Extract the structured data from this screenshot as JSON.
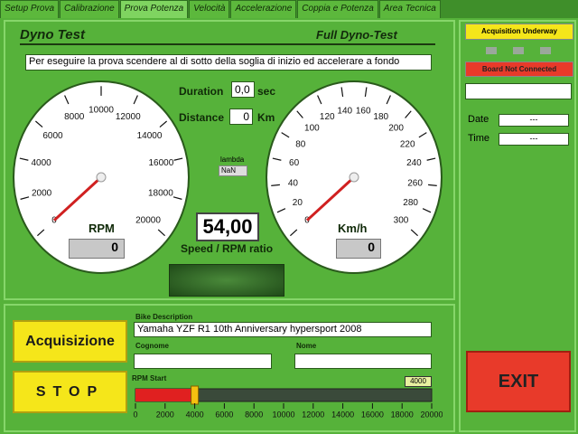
{
  "tabs": [
    "Setup Prova",
    "Calibrazione",
    "Prova Potenza",
    "Velocità",
    "Accelerazione",
    "Coppia e Potenza",
    "Area Tecnica"
  ],
  "header": {
    "title": "Dyno Test",
    "mode": "Full Dyno-Test"
  },
  "message": "Per eseguire la prova scendere al di sotto della soglia di inizio ed accelerare a fondo",
  "rpm_gauge": {
    "label": "RPM",
    "ticks": [
      0,
      2000,
      4000,
      6000,
      8000,
      10000,
      12000,
      14000,
      16000,
      18000,
      20000
    ],
    "value": 0
  },
  "speed_gauge": {
    "label": "Km/h",
    "ticks": [
      0,
      20,
      40,
      60,
      80,
      100,
      120,
      140,
      160,
      180,
      200,
      220,
      240,
      260,
      280,
      300
    ],
    "value": 0
  },
  "duration": {
    "label": "Duration",
    "value": "0,0",
    "unit": "sec"
  },
  "distance": {
    "label": "Distance",
    "value": "0",
    "unit": "Km"
  },
  "lambda": {
    "label": "lambda",
    "value": "NaN"
  },
  "ratio": {
    "value": "54,00",
    "label": "Speed / RPM ratio"
  },
  "bike": {
    "label": "Bike Description",
    "value": "Yamaha YZF R1 10th Anniversary hypersport 2008"
  },
  "cognome": {
    "label": "Cognome"
  },
  "nome": {
    "label": "Nome"
  },
  "buttons": {
    "acquire": "Acquisizione",
    "stop": "STOP",
    "exit": "EXIT"
  },
  "rpm_start": {
    "label": "RPM Start",
    "value": 4000,
    "ticks": [
      0,
      2000,
      4000,
      6000,
      8000,
      10000,
      12000,
      14000,
      16000,
      18000,
      20000
    ]
  },
  "status": {
    "acquisition": "Acquisition Underway",
    "board": "Board Not Connected"
  },
  "date": {
    "label": "Date",
    "value": "---"
  },
  "time": {
    "label": "Time",
    "value": "---"
  }
}
